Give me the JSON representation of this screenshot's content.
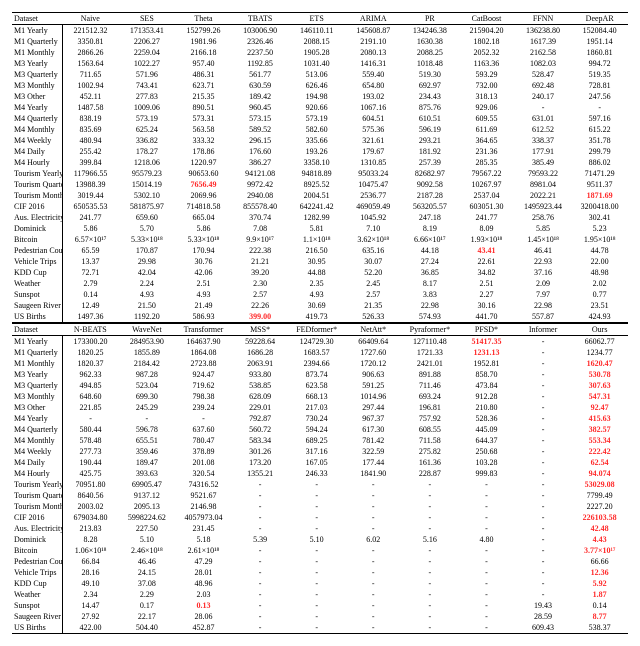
{
  "datasets": [
    "M1 Yearly",
    "M1 Quarterly",
    "M1 Monthly",
    "M3 Yearly",
    "M3 Quarterly",
    "M3 Monthly",
    "M3 Other",
    "M4 Yearly",
    "M4 Quarterly",
    "M4 Monthly",
    "M4 Weekly",
    "M4 Daily",
    "M4 Hourly",
    "Tourism Yearly",
    "Tourism Quarterly",
    "Tourism Monthly",
    "CIF 2016",
    "Aus. Electricity Demand",
    "Dominick",
    "Bitcoin",
    "Pedestrian Counts",
    "Vehicle Trips",
    "KDD Cup",
    "Weather",
    "Sunspot",
    "Saugeen River Flow",
    "US Births"
  ],
  "tableA": {
    "headers": [
      "Dataset",
      "Naive",
      "SES",
      "Theta",
      "TBATS",
      "ETS",
      "ARIMA",
      "PR",
      "CatBoost",
      "FFNN",
      "DeepAR"
    ],
    "rows": [
      [
        "221512.32",
        "171353.41",
        "152799.26",
        "103006.90",
        "146110.11",
        "145608.87",
        "134246.38",
        "215904.20",
        "136238.80",
        "152084.40"
      ],
      [
        "3350.81",
        "2206.27",
        "1981.96",
        "2326.46",
        "2088.15",
        "2191.10",
        "1630.38",
        "1802.18",
        "1617.39",
        "1951.14"
      ],
      [
        "2866.26",
        "2259.04",
        "2166.18",
        "2237.50",
        "1905.28",
        "2080.13",
        "2088.25",
        "2052.32",
        "2162.58",
        "1860.81"
      ],
      [
        "1563.64",
        "1022.27",
        "957.40",
        "1192.85",
        "1031.40",
        "1416.31",
        "1018.48",
        "1163.36",
        "1082.03",
        "994.72"
      ],
      [
        "711.65",
        "571.96",
        "486.31",
        "561.77",
        "513.06",
        "559.40",
        "519.30",
        "593.29",
        "528.47",
        "519.35"
      ],
      [
        "1002.94",
        "743.41",
        "623.71",
        "630.59",
        "626.46",
        "654.80",
        "692.97",
        "732.00",
        "692.48",
        "728.81"
      ],
      [
        "452.11",
        "277.83",
        "215.35",
        "189.42",
        "194.98",
        "193.02",
        "234.43",
        "318.13",
        "240.17",
        "247.56"
      ],
      [
        "1487.58",
        "1009.06",
        "890.51",
        "960.45",
        "920.66",
        "1067.16",
        "875.76",
        "929.06",
        "-",
        "-"
      ],
      [
        "838.19",
        "573.19",
        "573.31",
        "573.15",
        "573.19",
        "604.51",
        "610.51",
        "609.55",
        "631.01",
        "597.16"
      ],
      [
        "835.69",
        "625.24",
        "563.58",
        "589.52",
        "582.60",
        "575.36",
        "596.19",
        "611.69",
        "612.52",
        "615.22"
      ],
      [
        "480.94",
        "336.82",
        "333.32",
        "296.15",
        "335.66",
        "321.61",
        "293.21",
        "364.65",
        "338.37",
        "351.78"
      ],
      [
        "255.42",
        "178.27",
        "178.86",
        "176.60",
        "193.26",
        "179.67",
        "181.92",
        "231.36",
        "177.91",
        "299.79"
      ],
      [
        "399.84",
        "1218.06",
        "1220.97",
        "386.27",
        "3358.10",
        "1310.85",
        "257.39",
        "285.35",
        "385.49",
        "886.02"
      ],
      [
        "117966.55",
        "95579.23",
        "90653.60",
        "94121.08",
        "94818.89",
        "95033.24",
        "82682.97",
        "79567.22",
        "79593.22",
        "71471.29"
      ],
      [
        "13988.39",
        "15014.19",
        {
          "v": "7656.49",
          "c": "red"
        },
        "9972.42",
        "8925.52",
        "10475.47",
        "9092.58",
        "10267.97",
        "8981.04",
        "9511.37"
      ],
      [
        "3019.44",
        "5302.10",
        "2069.96",
        "2940.08",
        "2004.51",
        "2536.77",
        "2187.28",
        "2537.04",
        "2022.21",
        {
          "v": "1871.69",
          "c": "red"
        }
      ],
      [
        "650535.53",
        "581875.97",
        "714818.58",
        "855578.40",
        "642241.42",
        "469059.49",
        "563205.57",
        "603051.30",
        "1495923.44",
        "3200418.00"
      ],
      [
        "241.77",
        "659.60",
        "665.04",
        "370.74",
        "1282.99",
        "1045.92",
        "247.18",
        "241.77",
        "258.76",
        "302.41"
      ],
      [
        "5.86",
        "5.70",
        "5.86",
        "7.08",
        "5.81",
        "7.10",
        "8.19",
        "8.09",
        "5.85",
        "5.23"
      ],
      [
        "6.57×10¹⁷",
        "5.33×10¹⁸",
        "5.33×10¹⁸",
        "9.9×10¹⁷",
        "1.1×10¹⁸",
        "3.62×10¹⁸",
        "6.66×10¹⁷",
        "1.93×10¹⁸",
        "1.45×10¹⁸",
        "1.95×10¹⁸"
      ],
      [
        "65.59",
        "170.87",
        "170.94",
        "222.38",
        "216.50",
        "635.16",
        "44.18",
        {
          "v": "43.41",
          "c": "red"
        },
        "46.41",
        "44.78"
      ],
      [
        "13.37",
        "29.98",
        "30.76",
        "21.21",
        "30.95",
        "30.07",
        "27.24",
        "22.61",
        "22.93",
        "22.00"
      ],
      [
        "72.71",
        "42.04",
        "42.06",
        "39.20",
        "44.88",
        "52.20",
        "36.85",
        "34.82",
        "37.16",
        "48.98"
      ],
      [
        "2.79",
        "2.24",
        "2.51",
        "2.30",
        "2.35",
        "2.45",
        "8.17",
        "2.51",
        "2.09",
        "2.02"
      ],
      [
        "0.14",
        "4.93",
        "4.93",
        "2.57",
        "4.93",
        "2.57",
        "3.83",
        "2.27",
        "7.97",
        "0.77"
      ],
      [
        "12.49",
        "21.50",
        "21.49",
        "22.26",
        "30.69",
        "21.35",
        "22.98",
        "30.16",
        "22.98",
        "23.51"
      ],
      [
        "1497.36",
        "1192.20",
        "586.93",
        {
          "v": "399.00",
          "c": "red"
        },
        "419.73",
        "526.33",
        "574.93",
        "441.70",
        "557.87",
        "424.93"
      ]
    ]
  },
  "tableB": {
    "headers": [
      "Dataset",
      "N-BEATS",
      "WaveNet",
      "Transformer",
      "MSS*",
      "FEDformer*",
      "NetAtt*",
      "Pyraformer*",
      "PFSD*",
      "Informer",
      "Ours"
    ],
    "rows": [
      [
        "173300.20",
        "284953.90",
        "164637.90",
        "59228.64",
        "124729.30",
        "66409.64",
        "127110.48",
        {
          "v": "51417.35",
          "c": "red"
        },
        "-",
        "66062.77"
      ],
      [
        "1820.25",
        "1855.89",
        "1864.08",
        "1686.28",
        "1683.57",
        "1727.60",
        "1721.33",
        {
          "v": "1231.13",
          "c": "red"
        },
        "-",
        "1234.77"
      ],
      [
        "1820.37",
        "2184.42",
        "2723.88",
        "2063.91",
        "2394.66",
        "1720.12",
        "2421.01",
        "1952.81",
        "-",
        {
          "v": "1620.47",
          "c": "red"
        }
      ],
      [
        "962.33",
        "987.28",
        "924.47",
        "933.80",
        "873.74",
        "906.63",
        "891.88",
        "858.70",
        "-",
        {
          "v": "530.78",
          "c": "red"
        }
      ],
      [
        "494.85",
        "523.04",
        "719.62",
        "538.85",
        "623.58",
        "591.25",
        "711.46",
        "473.84",
        "-",
        {
          "v": "307.63",
          "c": "red"
        }
      ],
      [
        "648.60",
        "699.30",
        "798.38",
        "628.09",
        "668.13",
        "1014.96",
        "693.24",
        "912.28",
        "-",
        {
          "v": "547.31",
          "c": "red"
        }
      ],
      [
        "221.85",
        "245.29",
        "239.24",
        "229.01",
        "217.03",
        "297.44",
        "196.81",
        "210.80",
        "-",
        {
          "v": "92.47",
          "c": "red"
        }
      ],
      [
        "-",
        "-",
        "-",
        "792.87",
        "730.24",
        "967.37",
        "757.92",
        "528.36",
        "-",
        {
          "v": "415.63",
          "c": "red"
        }
      ],
      [
        "580.44",
        "596.78",
        "637.60",
        "560.72",
        "594.24",
        "617.30",
        "608.55",
        "445.09",
        "-",
        {
          "v": "382.57",
          "c": "red"
        }
      ],
      [
        "578.48",
        "655.51",
        "780.47",
        "583.34",
        "689.25",
        "781.42",
        "711.58",
        "644.37",
        "-",
        {
          "v": "553.34",
          "c": "red"
        }
      ],
      [
        "277.73",
        "359.46",
        "378.89",
        "301.26",
        "317.16",
        "322.59",
        "275.82",
        "250.68",
        "-",
        {
          "v": "222.42",
          "c": "red"
        }
      ],
      [
        "190.44",
        "189.47",
        "201.08",
        "173.20",
        "167.05",
        "177.44",
        "161.36",
        "103.28",
        "-",
        {
          "v": "62.54",
          "c": "red"
        }
      ],
      [
        "425.75",
        "393.63",
        "320.54",
        "1355.21",
        "246.33",
        "1841.90",
        "228.87",
        "999.83",
        "-",
        {
          "v": "94.074",
          "c": "red"
        }
      ],
      [
        "70951.80",
        "69905.47",
        "74316.52",
        "-",
        "-",
        "-",
        "-",
        "-",
        "-",
        {
          "v": "53029.08",
          "c": "red"
        }
      ],
      [
        "8640.56",
        "9137.12",
        "9521.67",
        "-",
        "-",
        "-",
        "-",
        "-",
        "-",
        "7799.49"
      ],
      [
        "2003.02",
        "2095.13",
        "2146.98",
        "-",
        "-",
        "-",
        "-",
        "-",
        "-",
        "2227.20"
      ],
      [
        "679034.80",
        "5998224.62",
        "4057973.04",
        "-",
        "-",
        "-",
        "-",
        "-",
        "-",
        {
          "v": "226103.58",
          "c": "red"
        }
      ],
      [
        "213.83",
        "227.50",
        "231.45",
        "-",
        "-",
        "-",
        "-",
        "-",
        "-",
        {
          "v": "42.48",
          "c": "red"
        }
      ],
      [
        "8.28",
        "5.10",
        "5.18",
        "5.39",
        "5.10",
        "6.02",
        "5.16",
        "4.80",
        "-",
        {
          "v": "4.43",
          "c": "red"
        }
      ],
      [
        "1.06×10¹⁸",
        "2.46×10¹⁸",
        "2.61×10¹⁸",
        "-",
        "-",
        "-",
        "-",
        "-",
        "-",
        {
          "v": "3.77×10¹⁷",
          "c": "red"
        }
      ],
      [
        "66.84",
        "46.46",
        "47.29",
        "-",
        "-",
        "-",
        "-",
        "-",
        "-",
        "66.66"
      ],
      [
        "28.16",
        "24.15",
        "28.01",
        "-",
        "-",
        "-",
        "-",
        "-",
        "-",
        {
          "v": "12.36",
          "c": "red"
        }
      ],
      [
        "49.10",
        "37.08",
        "48.96",
        "-",
        "-",
        "-",
        "-",
        "-",
        "-",
        {
          "v": "5.92",
          "c": "red"
        }
      ],
      [
        "2.34",
        "2.29",
        "2.03",
        "-",
        "-",
        "-",
        "-",
        "-",
        "-",
        {
          "v": "1.87",
          "c": "red"
        }
      ],
      [
        "14.47",
        "0.17",
        {
          "v": "0.13",
          "c": "red"
        },
        "-",
        "-",
        "-",
        "-",
        "-",
        "19.43",
        "0.14"
      ],
      [
        "27.92",
        "22.17",
        "28.06",
        "-",
        "-",
        "-",
        "-",
        "-",
        "28.59",
        {
          "v": "8.77",
          "c": "red"
        }
      ],
      [
        "422.00",
        "504.40",
        "452.87",
        "-",
        "-",
        "-",
        "-",
        "-",
        "609.43",
        "538.37"
      ]
    ]
  }
}
